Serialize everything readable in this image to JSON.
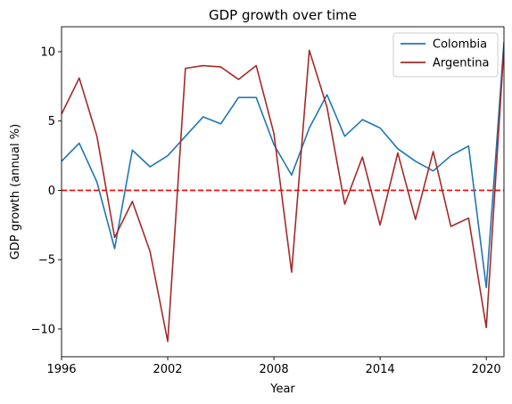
{
  "chart_data": {
    "type": "line",
    "title": "GDP  growth over time",
    "xlabel": "Year",
    "ylabel": "GDP growth (annual %)",
    "xlim": [
      1996,
      2021
    ],
    "ylim": [
      -12,
      11.8
    ],
    "xticks": [
      1996,
      2002,
      2008,
      2014,
      2020
    ],
    "yticks": [
      -10,
      -5,
      0,
      5,
      10
    ],
    "reference_line": {
      "y": 0,
      "style": "dashed",
      "color": "#ff0000"
    },
    "legend_position": "top-right",
    "x": [
      1996,
      1997,
      1998,
      1999,
      2000,
      2001,
      2002,
      2003,
      2004,
      2005,
      2006,
      2007,
      2008,
      2009,
      2010,
      2011,
      2012,
      2013,
      2014,
      2015,
      2016,
      2017,
      2018,
      2019,
      2020,
      2021
    ],
    "series": [
      {
        "name": "Colombia",
        "color": "#1f77b4",
        "values": [
          2.1,
          3.4,
          0.6,
          -4.2,
          2.9,
          1.7,
          2.5,
          3.9,
          5.3,
          4.8,
          6.7,
          6.7,
          3.3,
          1.1,
          4.5,
          6.9,
          3.9,
          5.1,
          4.5,
          3.0,
          2.1,
          1.4,
          2.5,
          3.2,
          -7.0,
          10.7
        ]
      },
      {
        "name": "Argentina",
        "color": "#a52a2a",
        "values": [
          5.5,
          8.1,
          3.9,
          -3.4,
          -0.8,
          -4.4,
          -10.9,
          8.8,
          9.0,
          8.9,
          8.0,
          9.0,
          4.1,
          -5.9,
          10.1,
          6.0,
          -1.0,
          2.4,
          -2.5,
          2.7,
          -2.1,
          2.8,
          -2.6,
          -2.0,
          -9.9,
          10.4
        ]
      }
    ]
  }
}
